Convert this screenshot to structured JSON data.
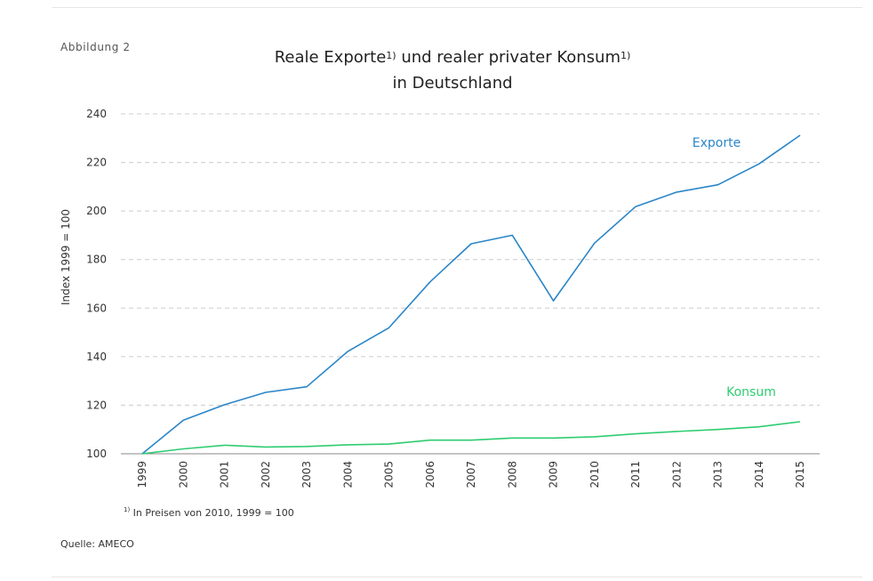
{
  "figure_label": "Abbildung 2",
  "title": {
    "line1_part1": "Reale Exporte",
    "line1_sup1": "1)",
    "line1_part2": " und realer privater Konsum",
    "line1_sup2": "1)",
    "line2": "in Deutschland"
  },
  "footnote": {
    "marker": "1)",
    "text": " In Preisen von 2010, 1999 = 100"
  },
  "source": "Quelle: AMECO",
  "colors": {
    "exporte": "#2a86c8",
    "konsum": "#2ecc71",
    "grid": "#cccccc",
    "axis": "#888888",
    "text": "#333333"
  },
  "chart_data": {
    "type": "line",
    "title": "Reale Exporte und realer privater Konsum in Deutschland",
    "xlabel": "",
    "ylabel": "Index 1999 = 100",
    "x": [
      "1999",
      "2000",
      "2001",
      "2002",
      "2003",
      "2004",
      "2005",
      "2006",
      "2007",
      "2008",
      "2009",
      "2010",
      "2011",
      "2012",
      "2013",
      "2014",
      "2015"
    ],
    "ylim": [
      100,
      240
    ],
    "yticks": [
      100,
      120,
      140,
      160,
      180,
      200,
      220,
      240
    ],
    "grid": true,
    "series": [
      {
        "name": "Exporte",
        "values": [
          100,
          113.8,
          120.2,
          125.3,
          127.6,
          142.2,
          151.9,
          170.8,
          186.5,
          190.0,
          163.0,
          186.8,
          201.8,
          207.8,
          210.8,
          219.4,
          231.2
        ]
      },
      {
        "name": "Konsum",
        "values": [
          100,
          102.0,
          103.5,
          102.8,
          103.0,
          103.7,
          104.0,
          105.6,
          105.6,
          106.5,
          106.5,
          107.0,
          108.2,
          109.2,
          110.0,
          111.1,
          113.2
        ]
      }
    ]
  }
}
